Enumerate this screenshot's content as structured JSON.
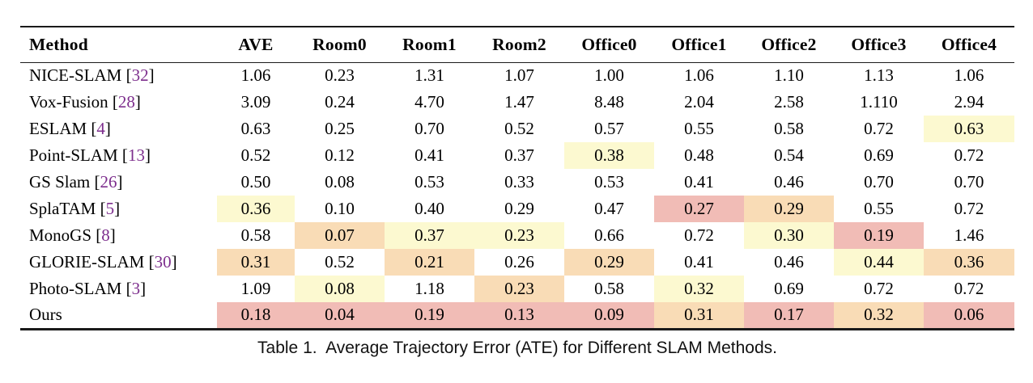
{
  "caption": "Table 1.  Average Trajectory Error (ATE) for Different SLAM Methods.",
  "colors": {
    "highlight_yellow": "#fcf9d0",
    "highlight_orange": "#f9dcb6",
    "highlight_pink": "#f1bcb6",
    "citation_purple": "#7d2e8d",
    "rule_black": "#1a1a1a"
  },
  "chart_data": {
    "type": "table",
    "title": "Table 1. Average Trajectory Error (ATE) for Different SLAM Methods.",
    "columns": [
      "Method",
      "AVE",
      "Room0",
      "Room1",
      "Room2",
      "Office0",
      "Office1",
      "Office2",
      "Office3",
      "Office4"
    ],
    "rows": [
      {
        "method": "NICE-SLAM",
        "ref": "32",
        "values": [
          "1.06",
          "0.23",
          "1.31",
          "1.07",
          "1.00",
          "1.06",
          "1.10",
          "1.13",
          "1.06"
        ],
        "highlights": [
          "none",
          "none",
          "none",
          "none",
          "none",
          "none",
          "none",
          "none",
          "none"
        ]
      },
      {
        "method": "Vox-Fusion",
        "ref": "28",
        "values": [
          "3.09",
          "0.24",
          "4.70",
          "1.47",
          "8.48",
          "2.04",
          "2.58",
          "1.110",
          "2.94"
        ],
        "highlights": [
          "none",
          "none",
          "none",
          "none",
          "none",
          "none",
          "none",
          "none",
          "none"
        ]
      },
      {
        "method": "ESLAM",
        "ref": "4",
        "values": [
          "0.63",
          "0.25",
          "0.70",
          "0.52",
          "0.57",
          "0.55",
          "0.58",
          "0.72",
          "0.63"
        ],
        "highlights": [
          "none",
          "none",
          "none",
          "none",
          "none",
          "none",
          "none",
          "none",
          "yellow"
        ]
      },
      {
        "method": "Point-SLAM",
        "ref": "13",
        "values": [
          "0.52",
          "0.12",
          "0.41",
          "0.37",
          "0.38",
          "0.48",
          "0.54",
          "0.69",
          "0.72"
        ],
        "highlights": [
          "none",
          "none",
          "none",
          "none",
          "yellow",
          "none",
          "none",
          "none",
          "none"
        ]
      },
      {
        "method": "GS Slam",
        "ref": "26",
        "values": [
          "0.50",
          "0.08",
          "0.53",
          "0.33",
          "0.53",
          "0.41",
          "0.46",
          "0.70",
          "0.70"
        ],
        "highlights": [
          "none",
          "none",
          "none",
          "none",
          "none",
          "none",
          "none",
          "none",
          "none"
        ]
      },
      {
        "method": "SplaTAM",
        "ref": "5",
        "values": [
          "0.36",
          "0.10",
          "0.40",
          "0.29",
          "0.47",
          "0.27",
          "0.29",
          "0.55",
          "0.72"
        ],
        "highlights": [
          "yellow",
          "none",
          "none",
          "none",
          "none",
          "pink",
          "orange",
          "none",
          "none"
        ]
      },
      {
        "method": "MonoGS",
        "ref": "8",
        "values": [
          "0.58",
          "0.07",
          "0.37",
          "0.23",
          "0.66",
          "0.72",
          "0.30",
          "0.19",
          "1.46"
        ],
        "highlights": [
          "none",
          "orange",
          "yellow",
          "yellow",
          "none",
          "none",
          "yellow",
          "pink",
          "none"
        ]
      },
      {
        "method": "GLORIE-SLAM",
        "ref": "30",
        "values": [
          "0.31",
          "0.52",
          "0.21",
          "0.26",
          "0.29",
          "0.41",
          "0.46",
          "0.44",
          "0.36"
        ],
        "highlights": [
          "orange",
          "none",
          "orange",
          "none",
          "orange",
          "none",
          "none",
          "yellow",
          "orange"
        ]
      },
      {
        "method": "Photo-SLAM",
        "ref": "3",
        "values": [
          "1.09",
          "0.08",
          "1.18",
          "0.23",
          "0.58",
          "0.32",
          "0.69",
          "0.72",
          "0.72"
        ],
        "highlights": [
          "none",
          "yellow",
          "none",
          "orange",
          "none",
          "yellow",
          "none",
          "none",
          "none"
        ]
      },
      {
        "method": "Ours",
        "ref": null,
        "values": [
          "0.18",
          "0.04",
          "0.19",
          "0.13",
          "0.09",
          "0.31",
          "0.17",
          "0.32",
          "0.06"
        ],
        "highlights": [
          "pink",
          "pink",
          "pink",
          "pink",
          "pink",
          "orange",
          "pink",
          "orange",
          "pink"
        ]
      }
    ]
  }
}
